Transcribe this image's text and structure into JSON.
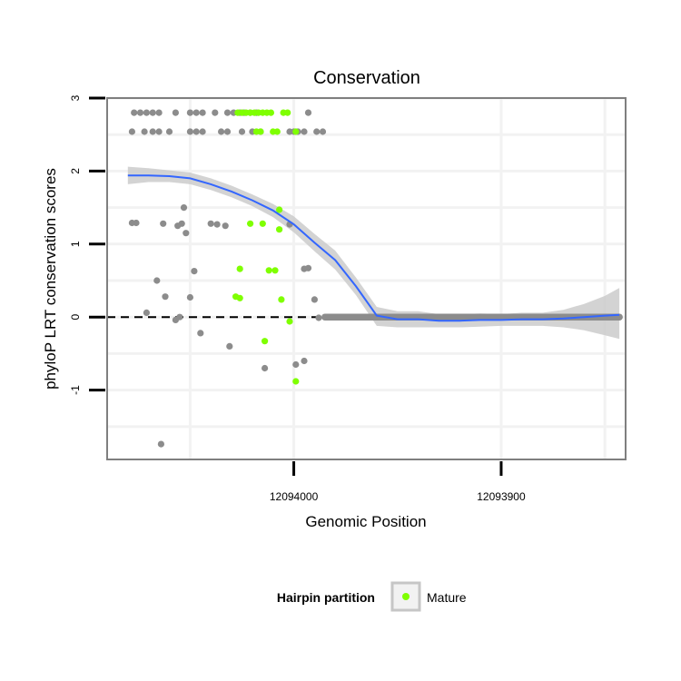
{
  "chart_data": {
    "type": "scatter",
    "title": "Conservation",
    "xlabel": "Genomic Position",
    "ylabel": "phyloP LRT conservation scores",
    "x_reversed": true,
    "xlim": [
      12094090,
      12093840
    ],
    "ylim": [
      -1.95,
      3.0
    ],
    "x_ticks": [
      12094000,
      12093900
    ],
    "y_ticks": [
      -1,
      0,
      1,
      2,
      3
    ],
    "x_tick_labels": [
      "12094000",
      "12093900"
    ],
    "y_tick_labels": [
      "-1",
      "0",
      "1",
      "2",
      "3"
    ],
    "reference_line": {
      "y": 0,
      "style": "dashed"
    },
    "legend": {
      "title": "Hairpin partition",
      "entries": [
        {
          "label": "Mature",
          "color": "#7fff00"
        }
      ],
      "position": "bottom"
    },
    "colors": {
      "other": "#8c8c8c",
      "mature": "#7fff00",
      "smooth": "#3366ff",
      "ribbon": "#c8c8c8"
    },
    "series": [
      {
        "name": "Other",
        "points": [
          [
            12094077,
            2.8
          ],
          [
            12094074,
            2.8
          ],
          [
            12094071,
            2.8
          ],
          [
            12094068,
            2.8
          ],
          [
            12094065,
            2.8
          ],
          [
            12094057,
            2.8
          ],
          [
            12094050,
            2.8
          ],
          [
            12094047,
            2.8
          ],
          [
            12094044,
            2.8
          ],
          [
            12094038,
            2.8
          ],
          [
            12094032,
            2.8
          ],
          [
            12094029,
            2.8
          ],
          [
            12094026,
            2.8
          ],
          [
            12094024,
            2.8
          ],
          [
            12094021,
            2.8
          ],
          [
            12094018,
            2.8
          ],
          [
            12093993,
            2.8
          ],
          [
            12094078,
            2.54
          ],
          [
            12094072,
            2.54
          ],
          [
            12094068,
            2.54
          ],
          [
            12094065,
            2.54
          ],
          [
            12094060,
            2.54
          ],
          [
            12094050,
            2.54
          ],
          [
            12094047,
            2.54
          ],
          [
            12094044,
            2.54
          ],
          [
            12094035,
            2.54
          ],
          [
            12094032,
            2.54
          ],
          [
            12094025,
            2.54
          ],
          [
            12094020,
            2.54
          ],
          [
            12094016,
            2.54
          ],
          [
            12094002,
            2.54
          ],
          [
            12094000,
            2.54
          ],
          [
            12093998,
            2.54
          ],
          [
            12093995,
            2.54
          ],
          [
            12093989,
            2.54
          ],
          [
            12093986,
            2.54
          ],
          [
            12094078,
            1.29
          ],
          [
            12094076,
            1.29
          ],
          [
            12094063,
            1.28
          ],
          [
            12094056,
            1.25
          ],
          [
            12094054,
            1.28
          ],
          [
            12094053,
            1.5
          ],
          [
            12094052,
            1.15
          ],
          [
            12094048,
            0.63
          ],
          [
            12094040,
            1.28
          ],
          [
            12094037,
            1.27
          ],
          [
            12094033,
            1.25
          ],
          [
            12094002,
            1.27
          ],
          [
            12094014,
            -0.7
          ],
          [
            12094066,
            0.5
          ],
          [
            12094062,
            0.28
          ],
          [
            12094050,
            0.27
          ],
          [
            12093993,
            0.67
          ],
          [
            12093995,
            0.66
          ],
          [
            12094071,
            0.06
          ],
          [
            12094057,
            -0.04
          ],
          [
            12094055,
            0.0
          ],
          [
            12094045,
            -0.22
          ],
          [
            12094031,
            -0.4
          ],
          [
            12093999,
            -0.65
          ],
          [
            12093995,
            -0.6
          ],
          [
            12093990,
            0.24
          ],
          [
            12093988,
            -0.01
          ],
          [
            12094064,
            -1.74
          ]
        ]
      },
      {
        "name": "Mature",
        "points": [
          [
            12094027,
            2.8
          ],
          [
            12094025,
            2.8
          ],
          [
            12094023,
            2.8
          ],
          [
            12094021,
            2.8
          ],
          [
            12094019,
            2.8
          ],
          [
            12094017,
            2.8
          ],
          [
            12094015,
            2.8
          ],
          [
            12094013,
            2.8
          ],
          [
            12094011,
            2.8
          ],
          [
            12094005,
            2.8
          ],
          [
            12094003,
            2.8
          ],
          [
            12094018,
            2.54
          ],
          [
            12094016,
            2.54
          ],
          [
            12094010,
            2.54
          ],
          [
            12094008,
            2.54
          ],
          [
            12093999,
            2.54
          ],
          [
            12094021,
            1.28
          ],
          [
            12094015,
            1.28
          ],
          [
            12094007,
            1.47
          ],
          [
            12094007,
            1.2
          ],
          [
            12094026,
            0.66
          ],
          [
            12094012,
            0.64
          ],
          [
            12094009,
            0.64
          ],
          [
            12094028,
            0.28
          ],
          [
            12094026,
            0.26
          ],
          [
            12094006,
            0.24
          ],
          [
            12094002,
            -0.06
          ],
          [
            12094014,
            -0.33
          ],
          [
            12093999,
            -0.88
          ]
        ]
      },
      {
        "name": "Zero-score positions",
        "line_from_x": 12093985,
        "line_to_x": 12093843,
        "y": 0
      }
    ],
    "smooth": {
      "method": "loess",
      "x": [
        12094080,
        12094070,
        12094060,
        12094050,
        12094040,
        12094030,
        12094020,
        12094010,
        12094000,
        12093990,
        12093980,
        12093970,
        12093960,
        12093950,
        12093940,
        12093930,
        12093920,
        12093910,
        12093900,
        12093890,
        12093880,
        12093870,
        12093860,
        12093850,
        12093843
      ],
      "y": [
        1.94,
        1.94,
        1.93,
        1.9,
        1.82,
        1.72,
        1.6,
        1.46,
        1.27,
        1.02,
        0.78,
        0.42,
        0.02,
        -0.03,
        -0.03,
        -0.05,
        -0.05,
        -0.04,
        -0.04,
        -0.03,
        -0.03,
        -0.02,
        0.0,
        0.02,
        0.03
      ],
      "se_lower": [
        1.82,
        1.85,
        1.85,
        1.82,
        1.74,
        1.64,
        1.52,
        1.37,
        1.16,
        0.9,
        0.65,
        0.3,
        -0.12,
        -0.14,
        -0.14,
        -0.14,
        -0.14,
        -0.13,
        -0.12,
        -0.12,
        -0.12,
        -0.14,
        -0.18,
        -0.25,
        -0.3
      ],
      "se_upper": [
        2.06,
        2.04,
        2.01,
        1.98,
        1.9,
        1.8,
        1.68,
        1.55,
        1.38,
        1.14,
        0.91,
        0.54,
        0.14,
        0.08,
        0.08,
        0.04,
        0.04,
        0.05,
        0.04,
        0.06,
        0.06,
        0.1,
        0.18,
        0.29,
        0.4
      ]
    }
  }
}
